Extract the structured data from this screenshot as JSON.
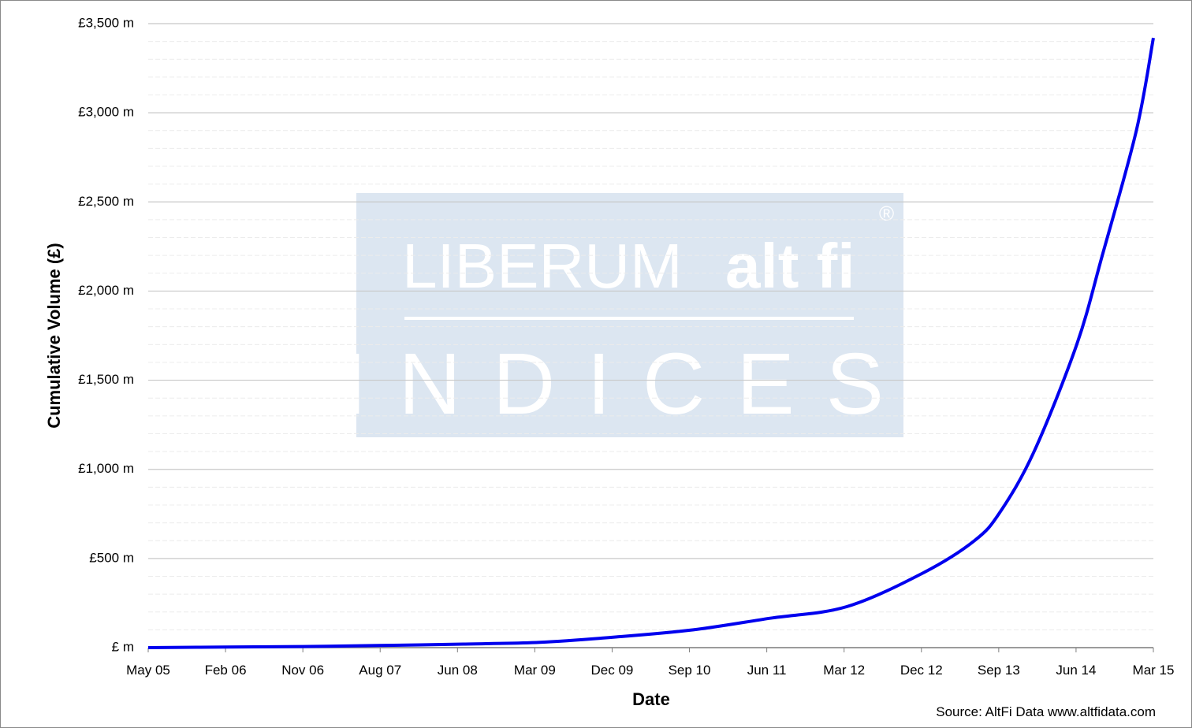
{
  "source_note": "Source: AltFi Data www.altfidata.com",
  "watermark": {
    "brand_left": "LIBERUM",
    "brand_right": "alt fi",
    "subtitle": "INDICES",
    "registered_mark": "®",
    "background_color": "#dce6f1"
  },
  "chart_data": {
    "type": "line",
    "xlabel": "Date",
    "ylabel": "Cumulative Volume (£)",
    "x_tick_labels": [
      "May 05",
      "Feb 06",
      "Nov 06",
      "Aug 07",
      "Jun 08",
      "Mar 09",
      "Dec 09",
      "Sep 10",
      "Jun 11",
      "Mar 12",
      "Dec 12",
      "Sep 13",
      "Jun 14",
      "Mar 15"
    ],
    "y_tick_labels": [
      "£ m",
      "£500 m",
      "£1,000 m",
      "£1,500 m",
      "£2,000 m",
      "£2,500 m",
      "£3,000 m",
      "£3,500 m"
    ],
    "ylim": [
      0,
      3500
    ],
    "xlim": [
      "2005-05",
      "2015-03"
    ],
    "grid": true,
    "line_color": "#0000ee",
    "series": [
      {
        "x": [
          "2005-05",
          "2006-02",
          "2006-11",
          "2007-08",
          "2008-06",
          "2009-03",
          "2009-12",
          "2010-09",
          "2011-06",
          "2012-03",
          "2012-12",
          "2013-06",
          "2013-09",
          "2014-01",
          "2014-06",
          "2014-09",
          "2015-01",
          "2015-03"
        ],
        "values": [
          0,
          3,
          6,
          12,
          20,
          30,
          60,
          100,
          165,
          230,
          420,
          600,
          760,
          1100,
          1700,
          2200,
          2900,
          3420
        ]
      }
    ]
  }
}
